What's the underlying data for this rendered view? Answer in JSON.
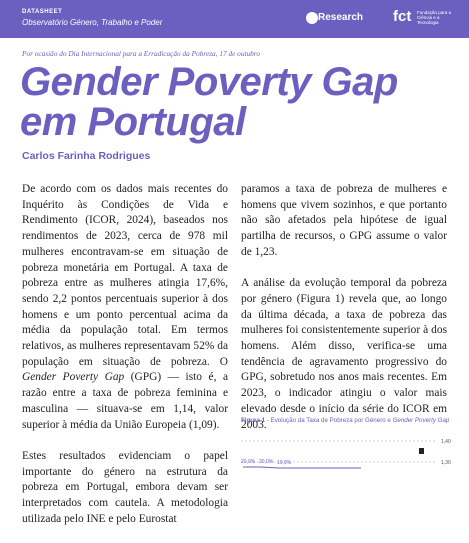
{
  "header": {
    "label": "DATASHEET",
    "observatory": "Observatório Género, Trabalho e Poder",
    "research": "Research",
    "fct": "fct",
    "fct_sub": "Fundação para a Ciência e a Tecnologia"
  },
  "occasion": "Por ocasião do Dia Internacional para a Erradicação da Pobreza, 17 de outubro",
  "title": "Gender Poverty Gap em Portugal",
  "author": "Carlos Farinha Rodrigues",
  "body": {
    "p1": [
      "De acordo com os dados mais recentes do Inquérito às Condições de Vida e Rendimento (ICOR, 2024), baseados nos rendimentos de 2023, cerca de 978 mil mulheres encontravam-se em situação de pobreza monetária em Portugal. A taxa de pobreza entre as mulheres atingia 17,6%, sendo 2,2 pontos percentuais superior à dos homens e um ponto percentual acima da média da população total. Em termos relativos, as mulheres representavam 52% da população em situação de pobreza. O ",
      "Gender Poverty Gap",
      " (GPG) — isto é, a razão entre a taxa de pobreza feminina e masculina — situava-se em 1,14, valor superior à média da União Europeia (1,09)."
    ],
    "p2": "Estes resultados evidenciam o papel importante do género na estrutura da pobreza em Portugal, embora devam ser interpretados com cautela. A metodologia utilizada pelo INE e pelo Eurostat",
    "p3": "paramos a taxa de pobreza de mulheres e homens que vivem sozinhos, e que portanto não são afetados pela hipótese de igual partilha de recursos, o GPG assume o valor de 1,23.",
    "p4": "A análise da evolução temporal da pobreza por género (Figura 1) revela que, ao longo da última década, a taxa de pobreza das mulheres foi consistentemente superior à dos homens. Além disso, verifica-se uma tendência de agravamento progressivo do GPG, sobretudo nos anos mais recentes. Em 2023, o indicador atingiu o valor mais elevado desde o início da série do ICOR em 2003."
  },
  "figure": {
    "label": "Figura 1",
    "caption": " - Evolução da Taxa de Pobreza por Género e ",
    "caption_italic": "Gender Poverty Gap",
    "right_ticks": [
      "1,40",
      "1,30"
    ],
    "labels": [
      "20,0%",
      "20,0%",
      "19,6%"
    ]
  }
}
